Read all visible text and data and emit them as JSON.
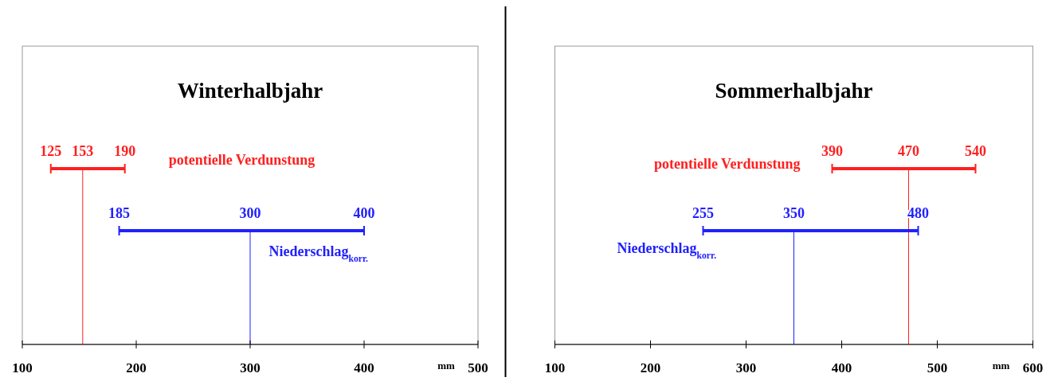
{
  "chart_data": [
    {
      "type": "bar",
      "title": "Winterhalbjahr",
      "orientation": "horizontal",
      "categories": [
        null,
        null
      ],
      "base": [
        125,
        185
      ],
      "values": [
        65,
        215
      ],
      "colors": [
        "#ff2020",
        "#2020ff"
      ],
      "grid": false,
      "xlim": [
        100,
        500
      ],
      "xticks": [
        100,
        200,
        300,
        400,
        500
      ],
      "xlabel": "mm",
      "tick_labels": "x",
      "ref_lines": [
        {
          "axis": "x",
          "value": 153,
          "color": "#ff2020",
          "label": "153"
        },
        {
          "axis": "x",
          "value": 300,
          "color": "#2020ff",
          "label": "300"
        }
      ],
      "annotations": [
        {
          "text": "190",
          "x": 190
        },
        {
          "text": "400",
          "x": 400
        },
        "125",
        "185",
        "potentielle Verdunstung",
        "Niederschlag$_{korr.}$"
      ]
    },
    {
      "type": "bar",
      "title": "Sommerhalbjahr",
      "orientation": "horizontal",
      "categories": [
        null,
        null
      ],
      "base": [
        390,
        255
      ],
      "values": [
        150,
        225
      ],
      "colors": [
        "#ff2020",
        "#2020ff"
      ],
      "grid": false,
      "xlim": [
        100,
        600
      ],
      "xticks": [
        100,
        200,
        300,
        400,
        500,
        600
      ],
      "xlabel": "mm",
      "tick_labels": "x",
      "ref_lines": [
        {
          "axis": "x",
          "value": 470,
          "color": "#ff2020",
          "label": "470"
        },
        {
          "axis": "x",
          "value": 350,
          "color": "#2020ff",
          "label": "350"
        }
      ],
      "annotations": [
        {
          "text": "540",
          "x": 540
        },
        {
          "text": "480",
          "x": 480
        },
        "390",
        "255",
        "potentielle Verdunstung",
        "Niederschlag$_{korr.}$"
      ]
    }
  ]
}
